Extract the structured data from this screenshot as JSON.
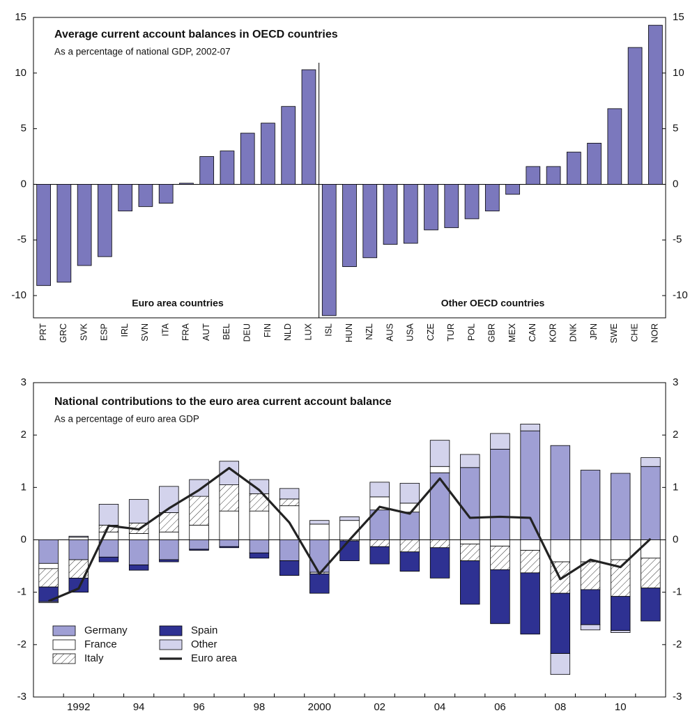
{
  "chart_data": [
    {
      "type": "bar",
      "title": "Average current account balances in OECD countries",
      "subtitle": "As a percentage of national GDP, 2002-07",
      "annotations": [
        "Euro area countries",
        "Other OECD countries"
      ],
      "categories": [
        "PRT",
        "GRC",
        "SVK",
        "ESP",
        "IRL",
        "SVN",
        "ITA",
        "FRA",
        "AUT",
        "BEL",
        "DEU",
        "FIN",
        "NLD",
        "LUX",
        "ISL",
        "HUN",
        "NZL",
        "AUS",
        "USA",
        "CZE",
        "TUR",
        "POL",
        "GBR",
        "MEX",
        "CAN",
        "KOR",
        "DNK",
        "JPN",
        "SWE",
        "CHE",
        "NOR"
      ],
      "values": [
        -9.1,
        -8.8,
        -7.3,
        -6.5,
        -2.4,
        -2.0,
        -1.7,
        0.1,
        2.5,
        3.0,
        4.6,
        5.5,
        7.0,
        10.3,
        -11.8,
        -7.4,
        -6.6,
        -5.4,
        -5.3,
        -4.1,
        -3.9,
        -3.1,
        -2.4,
        -0.9,
        1.6,
        1.6,
        2.9,
        3.7,
        6.8,
        12.3,
        14.3
      ],
      "color": "#7b78bd",
      "ylim": [
        -12,
        15
      ],
      "yticks": [
        -10,
        -5,
        0,
        5,
        10,
        15
      ],
      "y2lim": [
        -12,
        15
      ],
      "y2ticks": [
        -10,
        -5,
        0,
        5,
        10,
        15
      ]
    },
    {
      "type": "stacked-bar",
      "title": "National contributions to the euro area current account balance",
      "subtitle": "As a percentage of euro area GDP",
      "categories": [
        null,
        "1992",
        null,
        "94",
        null,
        "96",
        null,
        "98",
        null,
        "2000",
        null,
        "02",
        null,
        "04",
        null,
        "06",
        null,
        "08",
        null,
        "10",
        null
      ],
      "series": [
        {
          "name": "Germany",
          "color": "#9f9fd4",
          "values": [
            -0.45,
            -0.38,
            -0.33,
            -0.48,
            -0.38,
            -0.18,
            -0.13,
            -0.25,
            -0.4,
            -0.62,
            0,
            0.57,
            0.53,
            1.28,
            1.38,
            1.73,
            2.08,
            1.8,
            1.33,
            1.27,
            1.4
          ]
        },
        {
          "name": "France",
          "color": "#ffffff",
          "values": [
            -0.1,
            0.05,
            0.15,
            0.12,
            0.15,
            0.28,
            0.55,
            0.55,
            0.65,
            0.3,
            0.37,
            0.25,
            0.17,
            0.12,
            -0.08,
            -0.12,
            -0.2,
            -0.42,
            -0.42,
            -0.38,
            -0.35
          ]
        },
        {
          "name": "Italy",
          "color": "#ffffff",
          "hatch": true,
          "values": [
            -0.35,
            -0.35,
            0.13,
            0.2,
            0.37,
            0.55,
            0.5,
            0.33,
            0.13,
            -0.03,
            -0.02,
            -0.13,
            -0.23,
            -0.15,
            -0.32,
            -0.45,
            -0.43,
            -0.6,
            -0.53,
            -0.7,
            -0.57
          ]
        },
        {
          "name": "Spain",
          "color": "#2e3192",
          "values": [
            -0.28,
            -0.27,
            -0.09,
            -0.1,
            -0.04,
            -0.02,
            -0.02,
            -0.1,
            -0.28,
            -0.37,
            -0.38,
            -0.33,
            -0.37,
            -0.58,
            -0.83,
            -1.03,
            -1.17,
            -1.15,
            -0.67,
            -0.65,
            -0.63
          ]
        },
        {
          "name": "Other",
          "color": "#d3d3ec",
          "values": [
            -0.02,
            0.02,
            0.4,
            0.45,
            0.5,
            0.32,
            0.45,
            0.27,
            0.2,
            0.07,
            0.07,
            0.28,
            0.38,
            0.5,
            0.25,
            0.3,
            0.13,
            -0.4,
            -0.1,
            -0.04,
            0.17
          ]
        },
        {
          "name": "Euro area",
          "type": "line",
          "color": "#222222",
          "values": [
            -1.17,
            -0.93,
            0.27,
            0.2,
            0.6,
            0.95,
            1.37,
            0.95,
            0.33,
            -0.65,
            0.0,
            0.63,
            0.5,
            1.17,
            0.42,
            0.44,
            0.42,
            -0.75,
            -0.38,
            -0.52,
            0.02
          ]
        }
      ],
      "legend": "lower left",
      "ylim": [
        -3,
        3
      ],
      "yticks": [
        -3,
        -2,
        -1,
        0,
        1,
        2,
        3
      ],
      "y2lim": [
        -3,
        3
      ],
      "y2ticks": [
        -3,
        -2,
        -1,
        0,
        1,
        2,
        3
      ]
    }
  ]
}
